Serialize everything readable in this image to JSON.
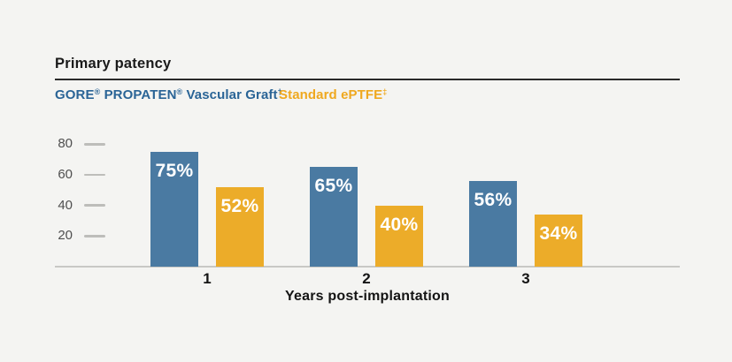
{
  "page": {
    "background": "#f4f4f2"
  },
  "header": {
    "title": "Primary patency"
  },
  "legend": {
    "items": [
      {
        "key": "gore-propaten-vascular-graft",
        "color": "#2a6496",
        "text": "GORE® PROPATEN® Vascular Graft†",
        "segments": [
          {
            "t": "GORE"
          },
          {
            "t": "®",
            "sup": true
          },
          {
            "t": " PROPATEN"
          },
          {
            "t": "®",
            "sup": true
          },
          {
            "t": " Vascular Graft"
          },
          {
            "t": "†",
            "sup": true
          }
        ]
      },
      {
        "key": "standard-eptfe",
        "color": "#efa81f",
        "text": "Standard ePTFE‡",
        "segments": [
          {
            "t": "Standard ePTFE"
          },
          {
            "t": "‡",
            "sup": true
          }
        ]
      }
    ]
  },
  "chart_data": {
    "type": "bar",
    "title": "Primary patency",
    "categories": [
      "1",
      "2",
      "3"
    ],
    "series": [
      {
        "key": "gore-propaten",
        "name": "GORE® PROPATEN® Vascular Graft†",
        "color": "#4a7aa2",
        "values": [
          75,
          65,
          56
        ],
        "bar_labels": [
          "75%",
          "65%",
          "56%"
        ]
      },
      {
        "key": "standard-eptfe",
        "name": "Standard ePTFE‡",
        "color": "#ecac29",
        "values": [
          52,
          40,
          34
        ],
        "bar_labels": [
          "52%",
          "40%",
          "34%"
        ]
      }
    ],
    "xlabel": "Years post-implantation",
    "ylabel": "",
    "yticks": [
      20,
      40,
      60,
      80
    ],
    "ylim": [
      0,
      80
    ],
    "grid": false,
    "legend_position": "top-left",
    "bar_label_color": "#ffffff",
    "axis_line_color": "#c8c8c5",
    "tick_label_color": "#4f4f4f"
  }
}
